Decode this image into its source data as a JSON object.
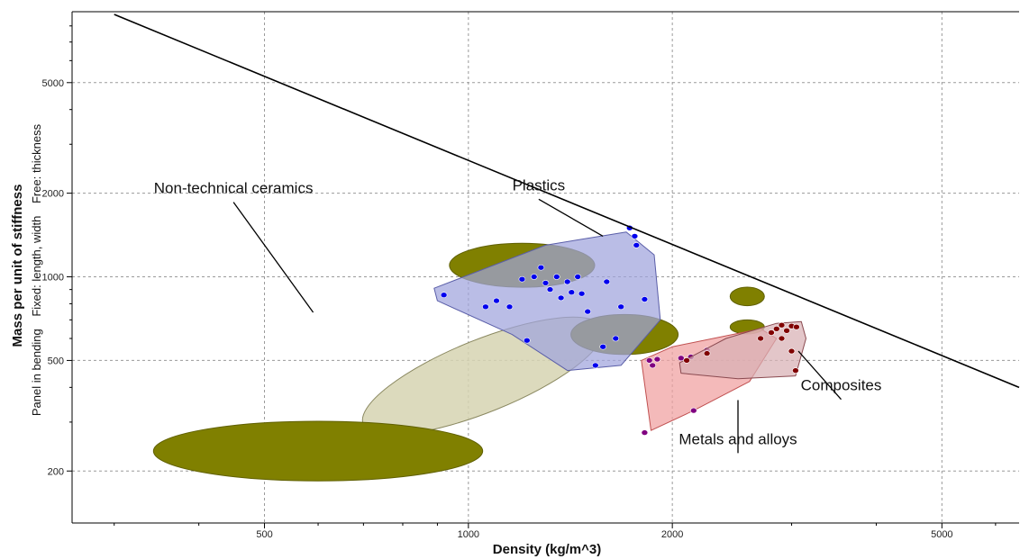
{
  "chart_data": {
    "type": "scatter",
    "xscale": "log",
    "yscale": "log",
    "xlim": [
      260,
      6500
    ],
    "ylim": [
      130,
      9000
    ],
    "grid": true,
    "xlabel": "Density (kg/m^3)",
    "ylabel": "Mass per unit of stiffness",
    "ylabel_sub": [
      "Panel in bending",
      "Fixed: length, width",
      "Free: thickness"
    ],
    "xticks": [
      500,
      1000,
      2000,
      5000
    ],
    "xtick_labels": [
      "500",
      "1000",
      "2000",
      "5000"
    ],
    "yticks": [
      200,
      500,
      1000,
      2000,
      5000
    ],
    "ytick_labels": [
      "200",
      "500",
      "1000",
      "2000",
      "5000"
    ],
    "selection_line": {
      "x": [
        300,
        6500
      ],
      "y": [
        8800,
        400
      ]
    },
    "annotations": [
      {
        "text": "Non-technical ceramics",
        "anchor": [
          450,
          2000
        ],
        "target": [
          590,
          745
        ]
      },
      {
        "text": "Plastics",
        "anchor": [
          1270,
          2050
        ],
        "target": [
          1580,
          1400
        ]
      },
      {
        "text": "Metals and alloys",
        "anchor": [
          2500,
          250
        ],
        "target": [
          2500,
          360
        ]
      },
      {
        "text": "Composites",
        "anchor": [
          3550,
          390
        ],
        "target": [
          3070,
          540
        ]
      }
    ],
    "families": [
      {
        "name": "Non-technical ceramics",
        "fill": "#d6d4b2",
        "stroke": "#8a8860",
        "ellipses": [
          {
            "x": 1050,
            "y": 440,
            "dx": 1.55,
            "dy": 1.35,
            "rot": -22
          },
          {
            "x": 600,
            "y": 236,
            "dx": 1.75,
            "dy": 1.28,
            "rot": 0,
            "fill": "#808000"
          },
          {
            "x": 1200,
            "y": 1100,
            "dx": 1.28,
            "dy": 1.2,
            "rot": 0,
            "fill": "#808000"
          },
          {
            "x": 1700,
            "y": 620,
            "dx": 1.2,
            "dy": 1.18,
            "rot": 0,
            "fill": "#808000"
          },
          {
            "x": 2580,
            "y": 850,
            "dx": 1.06,
            "dy": 1.08,
            "rot": 0,
            "fill": "#808000"
          },
          {
            "x": 2580,
            "y": 660,
            "dx": 1.06,
            "dy": 1.06,
            "rot": 0,
            "fill": "#808000"
          }
        ]
      },
      {
        "name": "Plastics",
        "fill": "#9fa3dc",
        "stroke": "#5a5ea8",
        "hull": [
          [
            890,
            910
          ],
          [
            1300,
            1300
          ],
          [
            1710,
            1450
          ],
          [
            1880,
            1200
          ],
          [
            1920,
            700
          ],
          [
            1680,
            480
          ],
          [
            1400,
            460
          ],
          [
            1160,
            620
          ],
          [
            900,
            820
          ]
        ],
        "points": [
          [
            1200,
            980
          ],
          [
            1250,
            1000
          ],
          [
            1300,
            950
          ],
          [
            1350,
            1000
          ],
          [
            1400,
            960
          ],
          [
            1450,
            1000
          ],
          [
            1280,
            1080
          ],
          [
            1150,
            780
          ],
          [
            1100,
            820
          ],
          [
            1060,
            780
          ],
          [
            1220,
            590
          ],
          [
            1500,
            750
          ],
          [
            1650,
            600
          ],
          [
            1730,
            1500
          ],
          [
            1760,
            1400
          ],
          [
            1820,
            830
          ],
          [
            920,
            860
          ],
          [
            1600,
            960
          ],
          [
            1420,
            880
          ],
          [
            1370,
            840
          ],
          [
            1680,
            780
          ],
          [
            1580,
            560
          ],
          [
            1540,
            480
          ],
          [
            1770,
            1300
          ],
          [
            1470,
            870
          ],
          [
            1320,
            900
          ]
        ],
        "color": "#0000ee"
      },
      {
        "name": "Metals and alloys",
        "fill": "#f0a0a0",
        "stroke": "#c05050",
        "hull": [
          [
            1800,
            500
          ],
          [
            1860,
            280
          ],
          [
            2150,
            330
          ],
          [
            2600,
            420
          ],
          [
            2850,
            600
          ],
          [
            2700,
            650
          ],
          [
            2000,
            560
          ]
        ],
        "points": [
          [
            1820,
            275
          ],
          [
            1870,
            480
          ],
          [
            2060,
            510
          ],
          [
            2130,
            515
          ],
          [
            2250,
            545
          ],
          [
            2150,
            330
          ],
          [
            1850,
            500
          ],
          [
            1900,
            505
          ]
        ],
        "color": "#800080"
      },
      {
        "name": "Composites",
        "fill": "#d8b0b4",
        "stroke": "#8a4a50",
        "hull": [
          [
            2050,
            490
          ],
          [
            2400,
            600
          ],
          [
            2850,
            680
          ],
          [
            3100,
            690
          ],
          [
            3150,
            600
          ],
          [
            3040,
            440
          ],
          [
            2500,
            430
          ],
          [
            2060,
            450
          ]
        ],
        "points": [
          [
            2100,
            500
          ],
          [
            2250,
            530
          ],
          [
            2700,
            600
          ],
          [
            2850,
            650
          ],
          [
            2900,
            670
          ],
          [
            3000,
            665
          ],
          [
            2950,
            640
          ],
          [
            3050,
            660
          ],
          [
            2800,
            630
          ],
          [
            3000,
            540
          ],
          [
            3040,
            460
          ],
          [
            2900,
            600
          ]
        ],
        "color": "#800000"
      }
    ]
  }
}
